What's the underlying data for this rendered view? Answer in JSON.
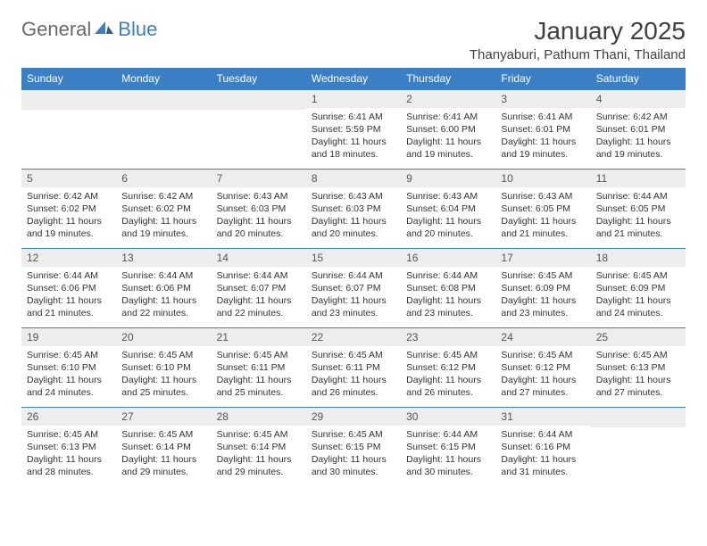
{
  "logo": {
    "text1": "General",
    "text2": "Blue"
  },
  "title": "January 2025",
  "location": "Thanyaburi, Pathum Thani, Thailand",
  "colors": {
    "header_bg": "#3b7fc4",
    "header_text": "#ffffff",
    "daynum_bg": "#ededed",
    "row_border": "#3b7fc4",
    "logo_gray": "#6a6a6a",
    "logo_blue": "#3b7fc4"
  },
  "weekdays": [
    "Sunday",
    "Monday",
    "Tuesday",
    "Wednesday",
    "Thursday",
    "Friday",
    "Saturday"
  ],
  "weeks": [
    [
      null,
      null,
      null,
      {
        "n": "1",
        "sr": "6:41 AM",
        "ss": "5:59 PM",
        "dl": "11 hours and 18 minutes."
      },
      {
        "n": "2",
        "sr": "6:41 AM",
        "ss": "6:00 PM",
        "dl": "11 hours and 19 minutes."
      },
      {
        "n": "3",
        "sr": "6:41 AM",
        "ss": "6:01 PM",
        "dl": "11 hours and 19 minutes."
      },
      {
        "n": "4",
        "sr": "6:42 AM",
        "ss": "6:01 PM",
        "dl": "11 hours and 19 minutes."
      }
    ],
    [
      {
        "n": "5",
        "sr": "6:42 AM",
        "ss": "6:02 PM",
        "dl": "11 hours and 19 minutes."
      },
      {
        "n": "6",
        "sr": "6:42 AM",
        "ss": "6:02 PM",
        "dl": "11 hours and 19 minutes."
      },
      {
        "n": "7",
        "sr": "6:43 AM",
        "ss": "6:03 PM",
        "dl": "11 hours and 20 minutes."
      },
      {
        "n": "8",
        "sr": "6:43 AM",
        "ss": "6:03 PM",
        "dl": "11 hours and 20 minutes."
      },
      {
        "n": "9",
        "sr": "6:43 AM",
        "ss": "6:04 PM",
        "dl": "11 hours and 20 minutes."
      },
      {
        "n": "10",
        "sr": "6:43 AM",
        "ss": "6:05 PM",
        "dl": "11 hours and 21 minutes."
      },
      {
        "n": "11",
        "sr": "6:44 AM",
        "ss": "6:05 PM",
        "dl": "11 hours and 21 minutes."
      }
    ],
    [
      {
        "n": "12",
        "sr": "6:44 AM",
        "ss": "6:06 PM",
        "dl": "11 hours and 21 minutes."
      },
      {
        "n": "13",
        "sr": "6:44 AM",
        "ss": "6:06 PM",
        "dl": "11 hours and 22 minutes."
      },
      {
        "n": "14",
        "sr": "6:44 AM",
        "ss": "6:07 PM",
        "dl": "11 hours and 22 minutes."
      },
      {
        "n": "15",
        "sr": "6:44 AM",
        "ss": "6:07 PM",
        "dl": "11 hours and 23 minutes."
      },
      {
        "n": "16",
        "sr": "6:44 AM",
        "ss": "6:08 PM",
        "dl": "11 hours and 23 minutes."
      },
      {
        "n": "17",
        "sr": "6:45 AM",
        "ss": "6:09 PM",
        "dl": "11 hours and 23 minutes."
      },
      {
        "n": "18",
        "sr": "6:45 AM",
        "ss": "6:09 PM",
        "dl": "11 hours and 24 minutes."
      }
    ],
    [
      {
        "n": "19",
        "sr": "6:45 AM",
        "ss": "6:10 PM",
        "dl": "11 hours and 24 minutes."
      },
      {
        "n": "20",
        "sr": "6:45 AM",
        "ss": "6:10 PM",
        "dl": "11 hours and 25 minutes."
      },
      {
        "n": "21",
        "sr": "6:45 AM",
        "ss": "6:11 PM",
        "dl": "11 hours and 25 minutes."
      },
      {
        "n": "22",
        "sr": "6:45 AM",
        "ss": "6:11 PM",
        "dl": "11 hours and 26 minutes."
      },
      {
        "n": "23",
        "sr": "6:45 AM",
        "ss": "6:12 PM",
        "dl": "11 hours and 26 minutes."
      },
      {
        "n": "24",
        "sr": "6:45 AM",
        "ss": "6:12 PM",
        "dl": "11 hours and 27 minutes."
      },
      {
        "n": "25",
        "sr": "6:45 AM",
        "ss": "6:13 PM",
        "dl": "11 hours and 27 minutes."
      }
    ],
    [
      {
        "n": "26",
        "sr": "6:45 AM",
        "ss": "6:13 PM",
        "dl": "11 hours and 28 minutes."
      },
      {
        "n": "27",
        "sr": "6:45 AM",
        "ss": "6:14 PM",
        "dl": "11 hours and 29 minutes."
      },
      {
        "n": "28",
        "sr": "6:45 AM",
        "ss": "6:14 PM",
        "dl": "11 hours and 29 minutes."
      },
      {
        "n": "29",
        "sr": "6:45 AM",
        "ss": "6:15 PM",
        "dl": "11 hours and 30 minutes."
      },
      {
        "n": "30",
        "sr": "6:44 AM",
        "ss": "6:15 PM",
        "dl": "11 hours and 30 minutes."
      },
      {
        "n": "31",
        "sr": "6:44 AM",
        "ss": "6:16 PM",
        "dl": "11 hours and 31 minutes."
      },
      null
    ]
  ],
  "labels": {
    "sunrise": "Sunrise:",
    "sunset": "Sunset:",
    "daylight": "Daylight:"
  }
}
